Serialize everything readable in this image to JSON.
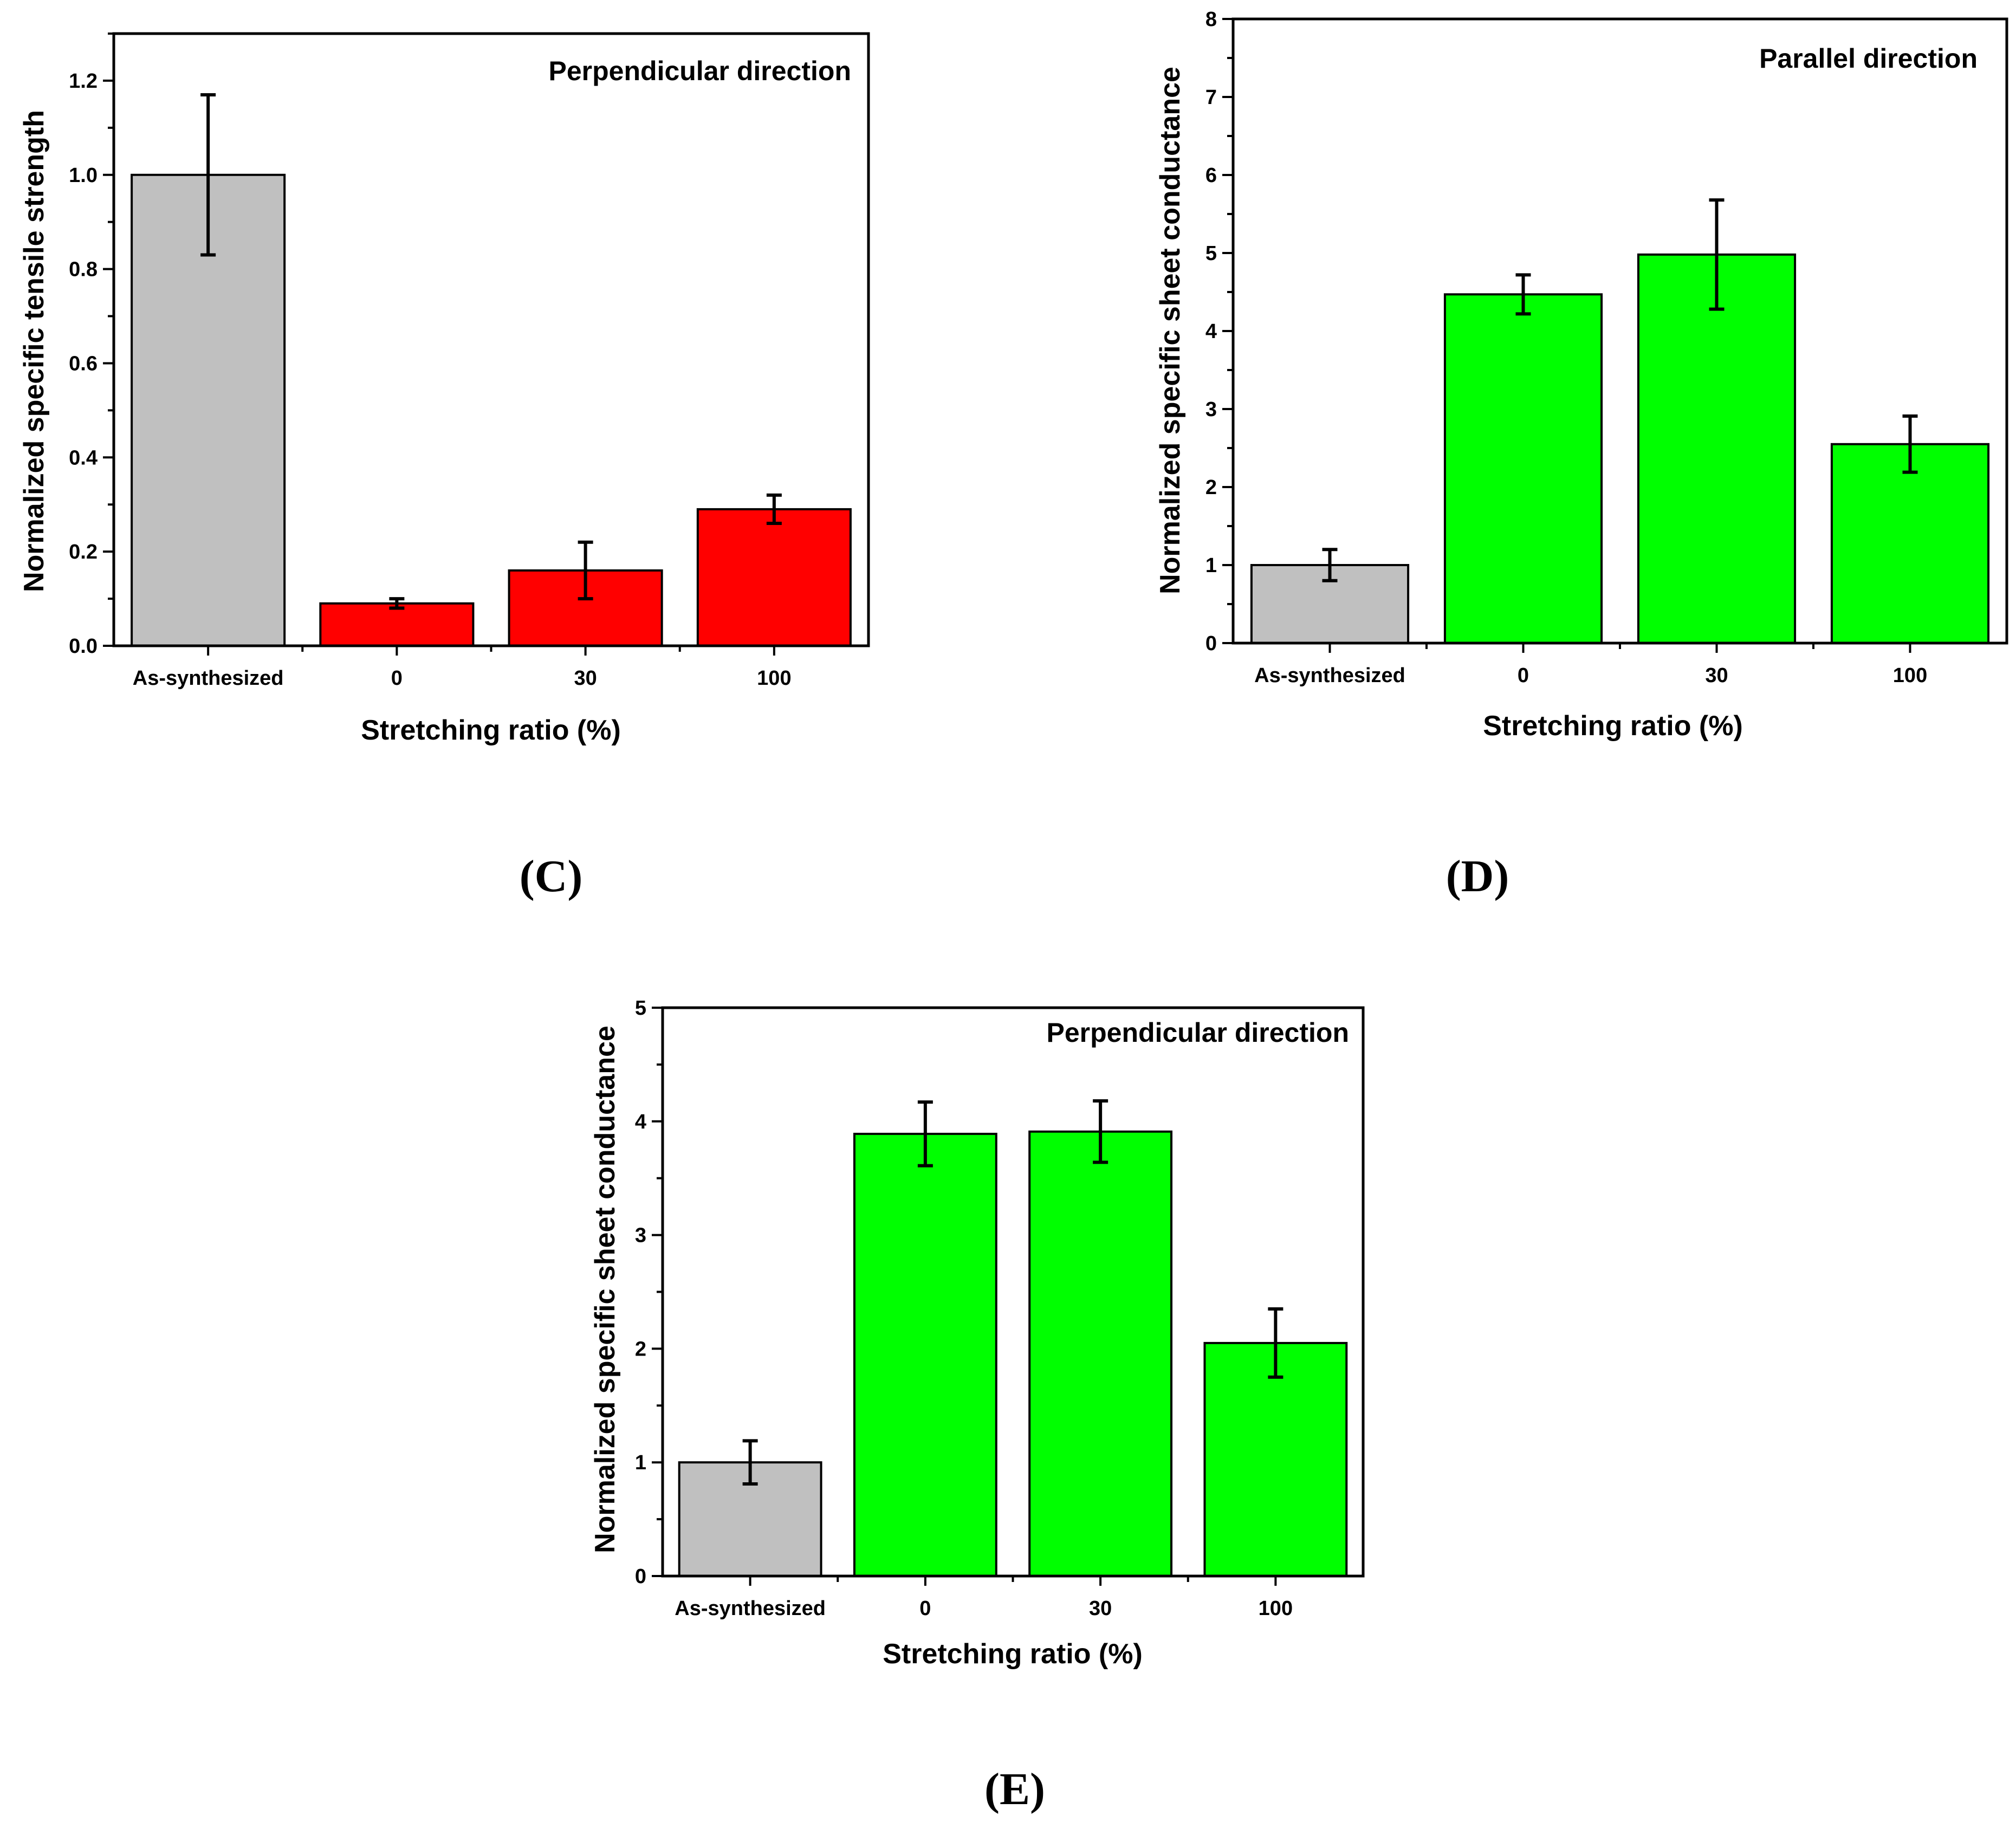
{
  "chart_data": [
    {
      "id": "C",
      "type": "bar",
      "panel_label": "(C)",
      "annotation": "Perpendicular direction",
      "xlabel": "Stretching ratio (%)",
      "ylabel": "Normalized specific tensile strength",
      "categories": [
        "As-synthesized",
        "0",
        "30",
        "100"
      ],
      "values": [
        1.0,
        0.09,
        0.16,
        0.29
      ],
      "errors": [
        0.17,
        0.01,
        0.06,
        0.03
      ],
      "colors": [
        "#c0c0c0",
        "#ff0000",
        "#ff0000",
        "#ff0000"
      ],
      "ylim": [
        0,
        1.3
      ],
      "yticks": [
        0.0,
        0.2,
        0.4,
        0.6,
        0.8,
        1.0,
        1.2
      ],
      "ytick_labels": [
        "0.0",
        "0.2",
        "0.4",
        "0.6",
        "0.8",
        "1.0",
        "1.2"
      ],
      "minor_step": 0.1
    },
    {
      "id": "D",
      "type": "bar",
      "panel_label": "(D)",
      "annotation": "Parallel direction",
      "xlabel": "Stretching ratio (%)",
      "ylabel": "Normalized specific sheet conductance",
      "categories": [
        "As-synthesized",
        "0",
        "30",
        "100"
      ],
      "values": [
        1.0,
        4.47,
        4.98,
        2.55
      ],
      "errors": [
        0.2,
        0.25,
        0.7,
        0.36
      ],
      "colors": [
        "#c0c0c0",
        "#00ff00",
        "#00ff00",
        "#00ff00"
      ],
      "ylim": [
        0,
        8
      ],
      "yticks": [
        0,
        1,
        2,
        3,
        4,
        5,
        6,
        7,
        8
      ],
      "ytick_labels": [
        "0",
        "1",
        "2",
        "3",
        "4",
        "5",
        "6",
        "7",
        "8"
      ],
      "minor_step": 0.5
    },
    {
      "id": "E",
      "type": "bar",
      "panel_label": "(E)",
      "annotation": "Perpendicular direction",
      "xlabel": "Stretching ratio (%)",
      "ylabel": "Normalized specific sheet conductance",
      "categories": [
        "As-synthesized",
        "0",
        "30",
        "100"
      ],
      "values": [
        1.0,
        3.89,
        3.91,
        2.05
      ],
      "errors": [
        0.19,
        0.28,
        0.27,
        0.3
      ],
      "colors": [
        "#c0c0c0",
        "#00ff00",
        "#00ff00",
        "#00ff00"
      ],
      "ylim": [
        0,
        5
      ],
      "yticks": [
        0,
        1,
        2,
        3,
        4,
        5
      ],
      "ytick_labels": [
        "0",
        "1",
        "2",
        "3",
        "4",
        "5"
      ],
      "minor_step": 0.5
    }
  ]
}
